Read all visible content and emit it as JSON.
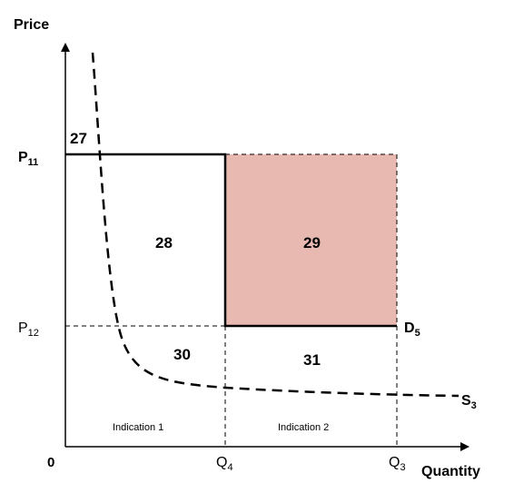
{
  "axes": {
    "y_label": "Price",
    "x_label": "Quantity",
    "origin": "0"
  },
  "price_levels": {
    "p11": {
      "main": "P",
      "sub": "11"
    },
    "p12": {
      "main": "P",
      "sub": "12"
    }
  },
  "quantity_levels": {
    "q4": {
      "main": "Q",
      "sub": "4"
    },
    "q3": {
      "main": "Q",
      "sub": "3"
    }
  },
  "curves": {
    "demand": {
      "main": "D",
      "sub": "5"
    },
    "supply": {
      "main": "S",
      "sub": "3"
    }
  },
  "areas": {
    "a27": "27",
    "a28": "28",
    "a29": "29",
    "a30": "30",
    "a31": "31"
  },
  "indications": {
    "first": "Indication 1",
    "second": "Indication 2"
  },
  "colors": {
    "shaded_area": "#e8b9b0",
    "lines": "#000000"
  }
}
